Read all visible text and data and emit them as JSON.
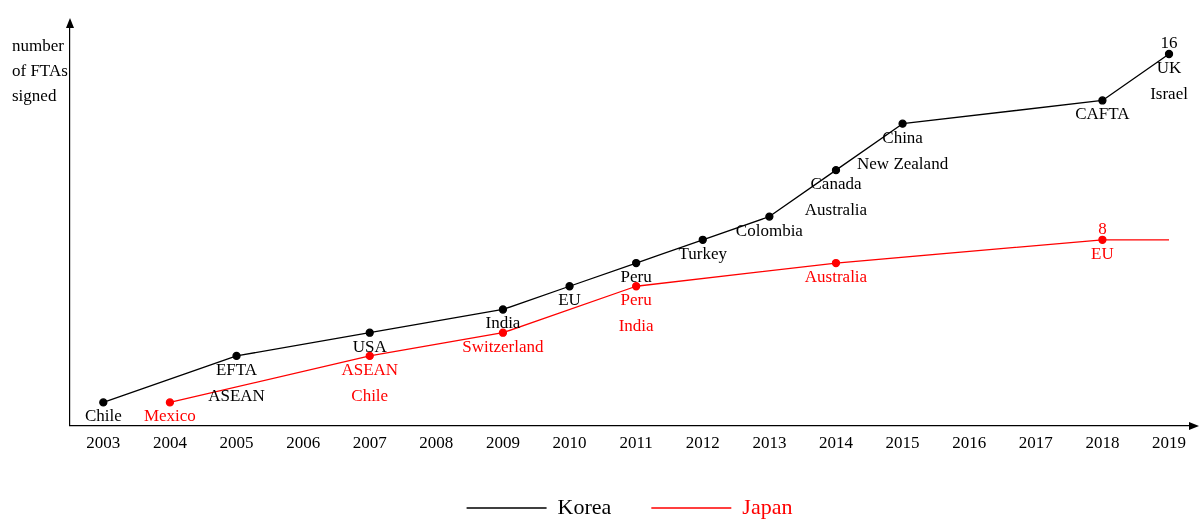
{
  "chart_data": {
    "type": "line",
    "ylabel": "number of FTAs signed",
    "xlim": [
      2002.5,
      2019.3
    ],
    "xticks": [
      2003,
      2004,
      2005,
      2006,
      2007,
      2008,
      2009,
      2010,
      2011,
      2012,
      2013,
      2014,
      2015,
      2016,
      2017,
      2018,
      2019
    ],
    "tick_labels": "x",
    "grid": false,
    "legend": "bottom",
    "marker": "circle",
    "line_style": "solid",
    "series": [
      {
        "name": "Korea",
        "color": "#000000",
        "x": [
          2003,
          2005,
          2007,
          2009,
          2010,
          2011,
          2012,
          2013,
          2014,
          2015,
          2018,
          2019
        ],
        "values": [
          1,
          3,
          4,
          5,
          6,
          7,
          8,
          9,
          11,
          13,
          14,
          16
        ],
        "value_labels": [
          null,
          null,
          null,
          null,
          null,
          null,
          null,
          null,
          null,
          null,
          null,
          "16"
        ]
      },
      {
        "name": "Japan",
        "color": "#ff0000",
        "x": [
          2004,
          2007,
          2009,
          2011,
          2014,
          2018,
          2019
        ],
        "values": [
          1,
          3,
          4,
          6,
          7,
          8,
          8
        ],
        "value_labels": [
          null,
          null,
          null,
          null,
          null,
          "8",
          null
        ]
      }
    ],
    "annotations": [
      {
        "text": "Chile",
        "x": 2003,
        "y": 1
      },
      {
        "text": "EFTA",
        "x": 2005,
        "y": 3
      },
      {
        "text": "ASEAN",
        "x": 2005,
        "y": 3
      },
      {
        "text": "USA",
        "x": 2007,
        "y": 4
      },
      {
        "text": "India",
        "x": 2009,
        "y": 5
      },
      {
        "text": "EU",
        "x": 2010,
        "y": 6
      },
      {
        "text": "Peru",
        "x": 2011,
        "y": 7
      },
      {
        "text": "Turkey",
        "x": 2012,
        "y": 8
      },
      {
        "text": "Colombia",
        "x": 2013,
        "y": 9
      },
      {
        "text": "Canada",
        "x": 2014,
        "y": 11
      },
      {
        "text": "Australia",
        "x": 2014,
        "y": 11
      },
      {
        "text": "China",
        "x": 2015,
        "y": 13
      },
      {
        "text": "New Zealand",
        "x": 2015,
        "y": 13
      },
      {
        "text": "CAFTA",
        "x": 2018,
        "y": 14
      },
      {
        "text": "UK",
        "x": 2019,
        "y": 16
      },
      {
        "text": "Israel",
        "x": 2019,
        "y": 16
      },
      {
        "text": "Mexico",
        "x": 2004,
        "y": 1
      },
      {
        "text": "ASEAN",
        "x": 2007,
        "y": 3
      },
      {
        "text": "Chile",
        "x": 2007,
        "y": 3
      },
      {
        "text": "Switzerland",
        "x": 2009,
        "y": 4
      },
      {
        "text": "Peru",
        "x": 2011,
        "y": 6
      },
      {
        "text": "India",
        "x": 2011,
        "y": 6
      },
      {
        "text": "Australia",
        "x": 2014,
        "y": 7
      },
      {
        "text": "EU",
        "x": 2018,
        "y": 8
      }
    ]
  }
}
